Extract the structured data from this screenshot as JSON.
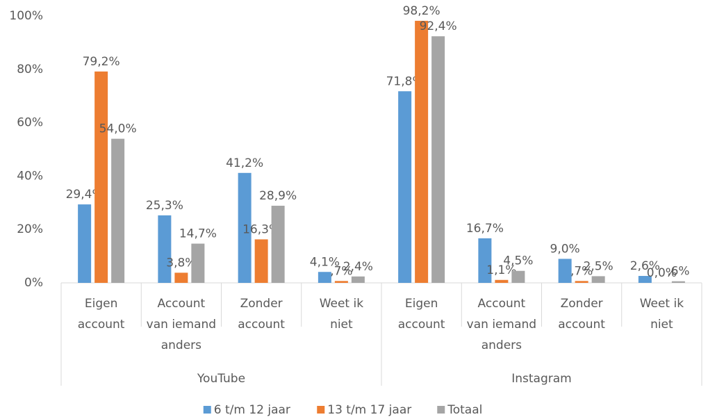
{
  "chart_data": {
    "type": "bar",
    "groups": [
      "YouTube",
      "Instagram"
    ],
    "categories": [
      [
        "Eigen",
        "account"
      ],
      [
        "Account",
        "van iemand",
        "anders"
      ],
      [
        "Zonder",
        "account"
      ],
      [
        "Weet ik",
        "niet"
      ],
      [
        "Eigen",
        "account"
      ],
      [
        "Account",
        "van iemand",
        "anders"
      ],
      [
        "Zonder",
        "account"
      ],
      [
        "Weet ik",
        "niet"
      ]
    ],
    "series": [
      {
        "name": "6 t/m 12 jaar",
        "color": "#5b9bd5",
        "values": [
          29.4,
          25.3,
          41.2,
          4.1,
          71.8,
          16.7,
          9.0,
          2.6
        ],
        "value_labels": [
          "29,4%",
          "25,3%",
          "41,2%",
          "4,1%",
          "71,8%",
          "16,7%",
          "9,0%",
          "2,6%"
        ]
      },
      {
        "name": "13 t/m 17 jaar",
        "color": "#ed7d31",
        "values": [
          79.2,
          3.8,
          16.3,
          0.7,
          98.2,
          1.1,
          0.7,
          0.0
        ],
        "value_labels": [
          "79,2%",
          "3,8%",
          "16,3%",
          ",7%",
          "98,2%",
          "1,1%",
          ",7%",
          "0,0%"
        ]
      },
      {
        "name": "Totaal",
        "color": "#a5a5a5",
        "values": [
          54.0,
          14.7,
          28.9,
          2.4,
          92.4,
          4.5,
          2.5,
          0.6
        ],
        "value_labels": [
          "54,0%",
          "14,7%",
          "28,9%",
          "2,4%",
          "92,4%",
          "4,5%",
          "2,5%",
          ",6%"
        ]
      }
    ],
    "ylim": [
      0,
      100
    ],
    "yticks": [
      {
        "value": 0,
        "label": "0%"
      },
      {
        "value": 20,
        "label": "20%"
      },
      {
        "value": 40,
        "label": "40%"
      },
      {
        "value": 60,
        "label": "60%"
      },
      {
        "value": 80,
        "label": "80%"
      },
      {
        "value": 100,
        "label": "100%"
      }
    ],
    "grid": false
  }
}
